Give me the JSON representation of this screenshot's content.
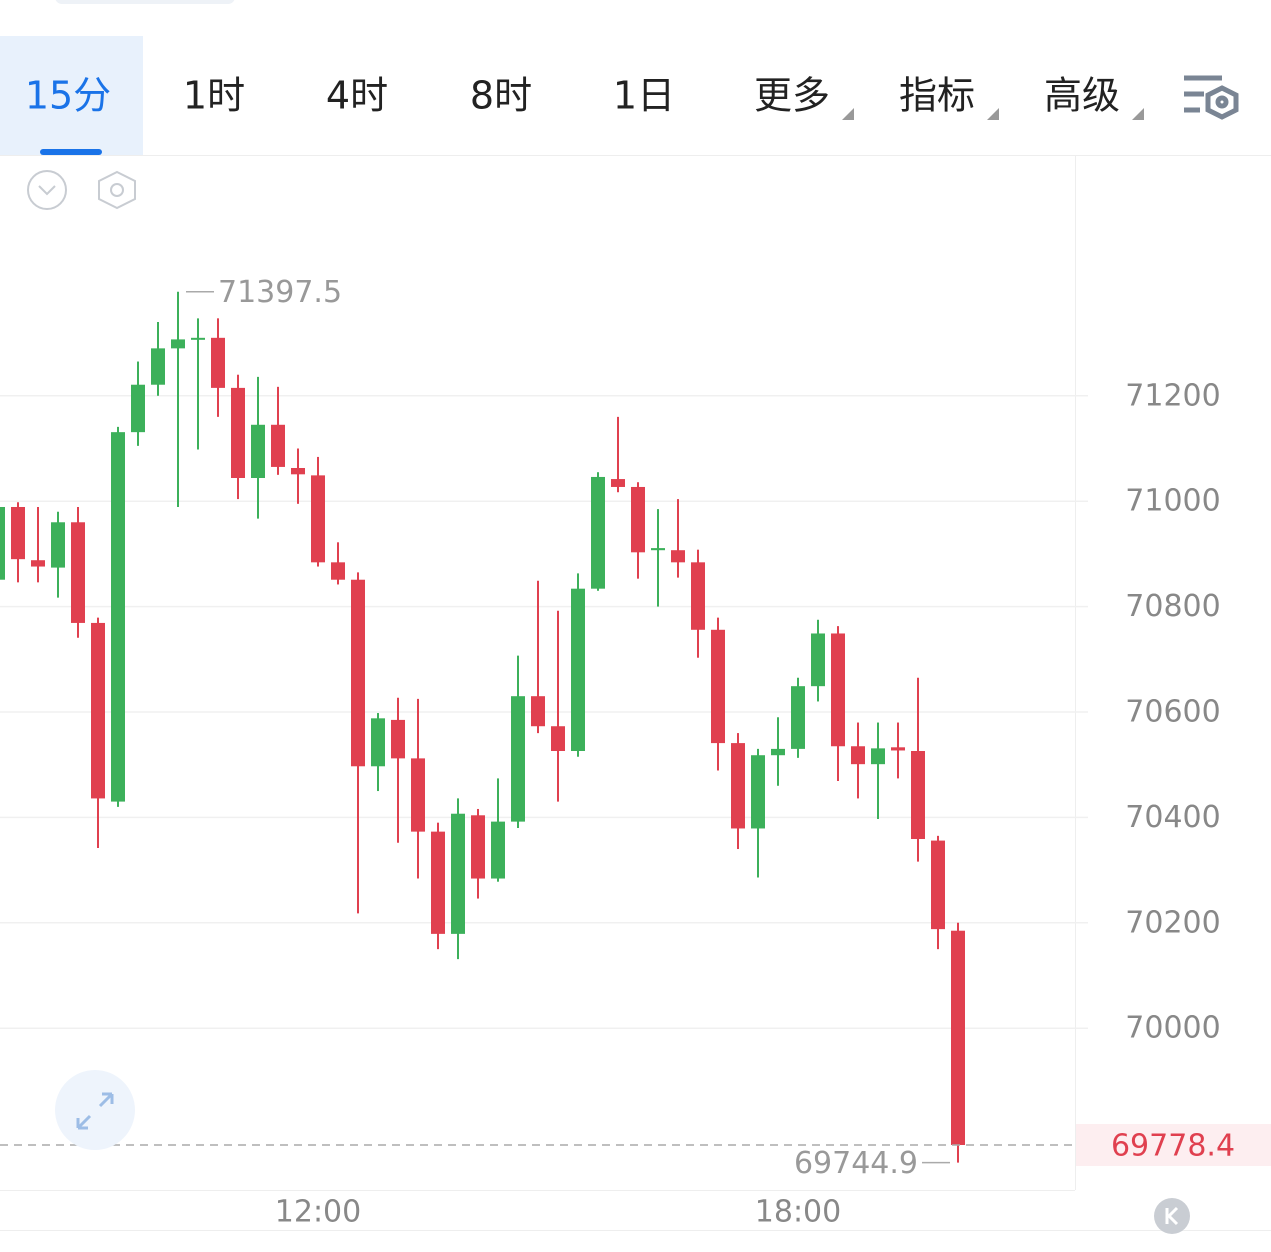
{
  "toolbar": {
    "tabs": [
      "15分",
      "1时",
      "4时",
      "8时",
      "1日",
      "更多",
      "指标",
      "高级"
    ],
    "active": 0
  },
  "chart_data": {
    "type": "candlestick",
    "categories": [
      null,
      null,
      null,
      null,
      null,
      null,
      null,
      null,
      null,
      null,
      null,
      null,
      null,
      null,
      null,
      null,
      "12:00",
      null,
      null,
      null,
      null,
      null,
      null,
      null,
      null,
      null,
      null,
      null,
      null,
      null,
      null,
      null,
      null,
      null,
      null,
      null,
      null,
      null,
      null,
      null,
      "18:00",
      null,
      null,
      null,
      null,
      null,
      null,
      null,
      null
    ],
    "open": [
      70851,
      70989,
      70888,
      70874,
      70960,
      70769,
      70430,
      71131,
      71221,
      71290,
      71307,
      71310,
      71215,
      71044,
      71145,
      71063,
      71049,
      70884,
      70851,
      70497,
      70585,
      70512,
      70373,
      70179,
      70404,
      70284,
      70392,
      70630,
      70573,
      70526,
      70834,
      71042,
      71027,
      70907,
      70907,
      70884,
      70756,
      70541,
      70379,
      70518,
      70530,
      70649,
      70749,
      70535,
      70501,
      70533,
      70526,
      70356,
      70185
    ],
    "high": [
      70998,
      70998,
      70989,
      70980,
      70989,
      70779,
      71141,
      71265,
      71340,
      71397.5,
      71347,
      71347,
      71240,
      71236,
      71217,
      71100,
      71084,
      70922,
      70865,
      70598,
      70627,
      70625,
      70390,
      70436,
      70416,
      70474,
      70707,
      70849,
      70792,
      70863,
      71055,
      71160,
      71036,
      70985,
      71004,
      70908,
      70779,
      70560,
      70530,
      70590,
      70665,
      70775,
      70763,
      70580,
      70580,
      70580,
      70665,
      70365,
      70200
    ],
    "low": [
      70846,
      70846,
      70846,
      70817,
      70741,
      70342,
      70420,
      71105,
      71200,
      70989,
      71098,
      71160,
      71004,
      70967,
      71050,
      70995,
      70876,
      70842,
      70218,
      70450,
      70352,
      70284,
      70150,
      70131,
      70246,
      70278,
      70380,
      70560,
      70430,
      70515,
      70830,
      71017,
      70853,
      70800,
      70855,
      70703,
      70489,
      70340,
      70286,
      70460,
      70513,
      70620,
      70469,
      70436,
      70397,
      70474,
      70316,
      70150,
      69744.9
    ],
    "close": [
      70989,
      70890,
      70876,
      70960,
      70769,
      70436,
      71131,
      71221,
      71290,
      71307,
      71310,
      71215,
      71044,
      71145,
      71065,
      71051,
      70884,
      70851,
      70497,
      70588,
      70512,
      70373,
      70179,
      70407,
      70284,
      70392,
      70630,
      70573,
      70526,
      70834,
      71046,
      71027,
      70903,
      70911,
      70884,
      70756,
      70541,
      70379,
      70518,
      70530,
      70649,
      70749,
      70535,
      70501,
      70531,
      70527,
      70359,
      70188,
      69778.4
    ],
    "up_color": "#3cb05a",
    "down_color": "#e0404f",
    "ylim": [
      69693,
      71655
    ],
    "yticks": [
      70000,
      70200,
      70400,
      70600,
      70800,
      71000,
      71200
    ],
    "grid": true
  }
}
